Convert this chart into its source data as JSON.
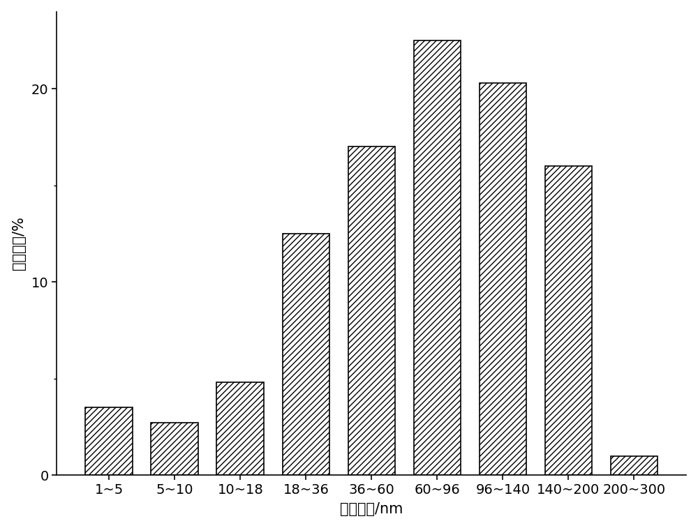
{
  "categories": [
    "1~5",
    "5~10",
    "10~18",
    "18~36",
    "36~60",
    "60~96",
    "96~140",
    "140~200",
    "200~300"
  ],
  "values": [
    3.5,
    2.7,
    4.8,
    12.5,
    17.0,
    22.5,
    20.3,
    16.0,
    1.0
  ],
  "xlabel": "尺寸大小/nm",
  "ylabel": "体积分数/%",
  "ylim": [
    0,
    24
  ],
  "yticks": [
    0,
    10,
    20
  ],
  "yminorticks": [
    5,
    15
  ],
  "bar_color": "#ffffff",
  "bar_edgecolor": "#000000",
  "hatch": "////",
  "background_color": "#ffffff",
  "xlabel_fontsize": 15,
  "ylabel_fontsize": 15,
  "tick_fontsize": 14,
  "bar_width": 0.72,
  "figwidth": 10.0,
  "figheight": 7.57
}
